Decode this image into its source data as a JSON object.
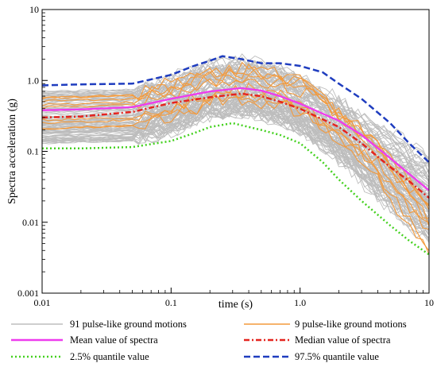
{
  "chart_data": {
    "type": "line",
    "title": "",
    "xlabel": "time (s)",
    "ylabel": "Spectra acceleration (g)",
    "xscale": "log",
    "yscale": "log",
    "xlim": [
      0.01,
      10
    ],
    "ylim": [
      0.001,
      10
    ],
    "xticks": [
      "0.01",
      "0.1",
      "1.0",
      "10"
    ],
    "yticks": [
      "0.001",
      "0.01",
      "0.1",
      "1.0",
      "10"
    ],
    "grid": false,
    "legend_position": "below",
    "series": [
      {
        "name": "91 pulse-like ground motions",
        "color": "#bdbdbd",
        "style": "solid",
        "x": [
          0.01,
          0.05,
          0.1,
          0.2,
          0.4,
          0.7,
          1,
          2,
          4,
          10
        ],
        "y": [
          0.3,
          0.32,
          0.45,
          0.75,
          0.8,
          0.6,
          0.45,
          0.2,
          0.07,
          0.02
        ]
      },
      {
        "name": "9 pulse-like ground motions",
        "color": "#f39a3c",
        "style": "solid",
        "x": [
          0.01,
          0.05,
          0.1,
          0.2,
          0.4,
          0.7,
          1,
          2,
          4,
          10
        ],
        "y": [
          0.35,
          0.38,
          0.55,
          0.8,
          0.9,
          0.75,
          0.6,
          0.25,
          0.08,
          0.01
        ]
      },
      {
        "name": "Mean value of spectra",
        "color": "#ee3bee",
        "style": "solid",
        "x": [
          0.01,
          0.02,
          0.05,
          0.1,
          0.2,
          0.35,
          0.5,
          0.7,
          1,
          2,
          3,
          5,
          7,
          10
        ],
        "y": [
          0.38,
          0.39,
          0.42,
          0.55,
          0.7,
          0.78,
          0.72,
          0.6,
          0.47,
          0.27,
          0.17,
          0.08,
          0.048,
          0.028
        ]
      },
      {
        "name": "Median value of  spectra",
        "color": "#e4241f",
        "style": "dashdot",
        "x": [
          0.01,
          0.02,
          0.05,
          0.1,
          0.2,
          0.35,
          0.5,
          0.7,
          1,
          2,
          3,
          5,
          7,
          10
        ],
        "y": [
          0.3,
          0.31,
          0.36,
          0.48,
          0.58,
          0.65,
          0.6,
          0.5,
          0.4,
          0.22,
          0.13,
          0.06,
          0.038,
          0.022
        ]
      },
      {
        "name": "2.5% quantile value",
        "color": "#44d11f",
        "style": "dotted",
        "x": [
          0.01,
          0.02,
          0.05,
          0.1,
          0.15,
          0.2,
          0.3,
          0.5,
          0.7,
          1,
          1.5,
          2,
          3,
          5,
          7,
          10
        ],
        "y": [
          0.11,
          0.11,
          0.115,
          0.14,
          0.18,
          0.22,
          0.25,
          0.2,
          0.17,
          0.13,
          0.07,
          0.04,
          0.02,
          0.009,
          0.0055,
          0.0035
        ]
      },
      {
        "name": "97.5% quantile value",
        "color": "#1f3dbf",
        "style": "dashed",
        "x": [
          0.01,
          0.02,
          0.05,
          0.1,
          0.15,
          0.2,
          0.25,
          0.35,
          0.5,
          0.7,
          1,
          1.5,
          2,
          3,
          5,
          7,
          10
        ],
        "y": [
          0.85,
          0.88,
          0.9,
          1.2,
          1.6,
          1.9,
          2.2,
          2.0,
          1.75,
          1.75,
          1.6,
          1.3,
          0.9,
          0.55,
          0.25,
          0.13,
          0.07
        ]
      }
    ]
  }
}
